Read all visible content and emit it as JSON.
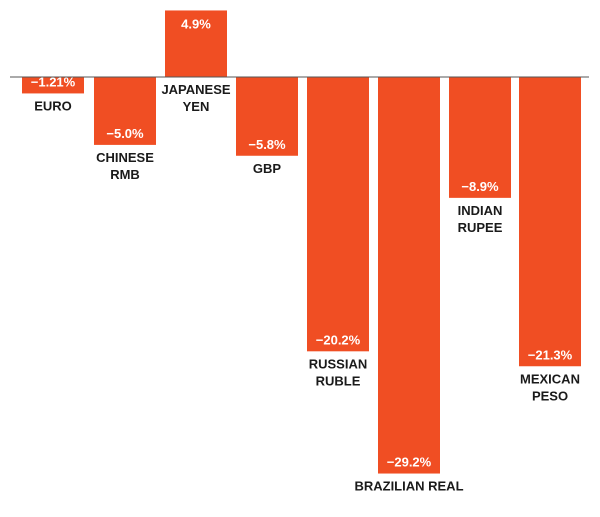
{
  "chart_data": {
    "type": "bar",
    "categories": [
      [
        "EURO"
      ],
      [
        "CHINESE",
        "RMB"
      ],
      [
        "JAPANESE",
        "YEN"
      ],
      [
        "GBP"
      ],
      [
        "RUSSIAN",
        "RUBLE"
      ],
      [
        "BRAZILIAN REAL"
      ],
      [
        "INDIAN",
        "RUPEE"
      ],
      [
        "MEXICAN",
        "PESO"
      ]
    ],
    "values": [
      -1.21,
      -5.0,
      4.9,
      -5.8,
      -20.2,
      -29.2,
      -8.9,
      -21.3
    ],
    "value_labels": [
      "−1.21%",
      "−5.0%",
      "4.9%",
      "−5.8%",
      "−20.2%",
      "−29.2%",
      "−8.9%",
      "−21.3%"
    ],
    "title": "",
    "xlabel": "",
    "ylabel": "",
    "ylim": [
      -29.2,
      4.9
    ],
    "grid": false,
    "legend": "none",
    "colors": {
      "bar": "#f04e23",
      "baseline": "#555555",
      "value_text": "#ffffff",
      "category_text": "#1a1a1a"
    }
  }
}
